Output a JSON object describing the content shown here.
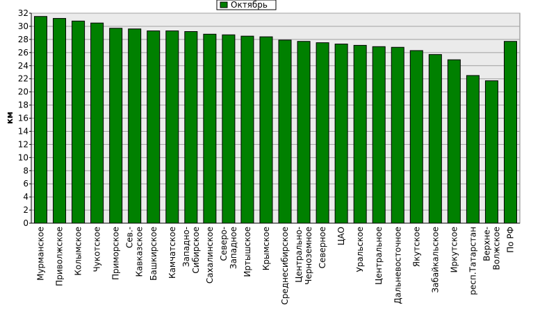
{
  "chart_data": {
    "type": "bar",
    "y_label": "км",
    "categories": [
      "Мурманское",
      "Приволжское",
      "Колымское",
      "Чукотское",
      "Приморское",
      "Сев.-Кавказское",
      "Башкирское",
      "Камчатское",
      "Западно-Сибирское",
      "Сахалинское",
      "Северо-Западное",
      "Иртышское",
      "Крымское",
      "Среднесибирское",
      "Центрально-Черноземное",
      "Северное",
      "ЦАО",
      "Уральское",
      "Центральное",
      "Дальневосточное",
      "Якутское",
      "Забайкальское",
      "Иркутское",
      "респ.Татарстан",
      "Верхне-Волжское",
      "По РФ"
    ],
    "series": [
      {
        "name": "Октябрь",
        "color": "#008000",
        "values": [
          31.5,
          31.2,
          30.8,
          30.5,
          29.7,
          29.6,
          29.3,
          29.3,
          29.2,
          28.8,
          28.7,
          28.5,
          28.4,
          27.9,
          27.7,
          27.5,
          27.3,
          27.1,
          26.9,
          26.8,
          26.3,
          25.7,
          24.9,
          22.5,
          21.7,
          27.7
        ]
      }
    ],
    "ylim": [
      0,
      32
    ],
    "yticks": [
      0,
      2,
      4,
      6,
      8,
      10,
      12,
      14,
      16,
      18,
      20,
      22,
      24,
      26,
      28,
      30,
      32
    ],
    "grid": true
  }
}
